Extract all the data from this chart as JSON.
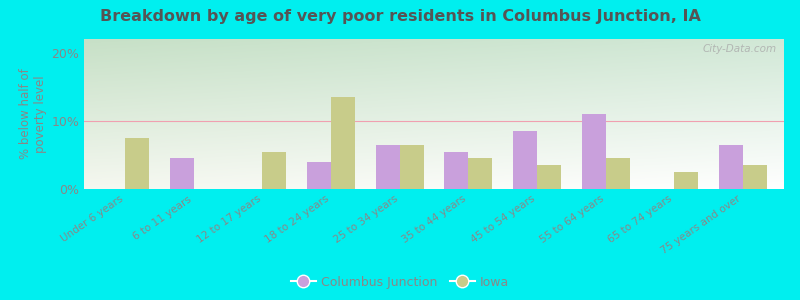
{
  "title": "Breakdown by age of very poor residents in Columbus Junction, IA",
  "ylabel": "% below half of\npoverty level",
  "categories": [
    "Under 6 years",
    "6 to 11 years",
    "12 to 17 years",
    "18 to 24 years",
    "25 to 34 years",
    "35 to 44 years",
    "45 to 54 years",
    "55 to 64 years",
    "65 to 74 years",
    "75 years and over"
  ],
  "columbus_junction": [
    0,
    4.5,
    0,
    4.0,
    6.5,
    5.5,
    8.5,
    11.0,
    0,
    6.5
  ],
  "iowa": [
    7.5,
    0,
    5.5,
    13.5,
    6.5,
    4.5,
    3.5,
    4.5,
    2.5,
    3.5
  ],
  "columbus_color": "#c9a0dc",
  "iowa_color": "#c8cc8a",
  "ylim": [
    0,
    22
  ],
  "yticks": [
    0,
    10,
    20
  ],
  "ytick_labels": [
    "0%",
    "10%",
    "20%"
  ],
  "bg_top_left": "#c8e6c8",
  "bg_bottom_right": "#e8f0d8",
  "outer_background": "#00efef",
  "title_color": "#555555",
  "axis_color": "#888888",
  "bar_width": 0.35,
  "watermark": "City-Data.com",
  "grid_color": "#e8b8b8",
  "legend_label_1": "Columbus Junction",
  "legend_label_2": "Iowa"
}
